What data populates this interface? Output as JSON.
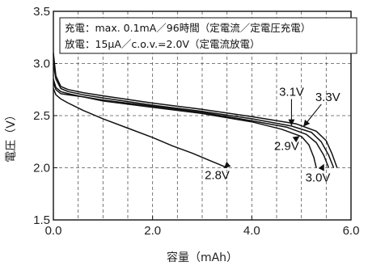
{
  "chart_data": {
    "type": "line",
    "xlabel": "容量（mAh）",
    "ylabel": "電圧（V）",
    "xlim": [
      0,
      6
    ],
    "ylim": [
      1.5,
      3.5
    ],
    "x_ticks": [
      "0.0",
      "2.0",
      "4.0",
      "6.0"
    ],
    "y_ticks": [
      "1.5",
      "2.0",
      "2.5",
      "3.0",
      "3.5"
    ],
    "grid": "dashed",
    "conditions": [
      "充電：max. 0.1mA／96時間（定電流／定電圧充電）",
      "放電：15μA／c.o.v.=2.0V（定電流放電）"
    ],
    "series": [
      {
        "name": "2.8V",
        "x": [
          0,
          0.05,
          0.15,
          0.3,
          0.6,
          1.0,
          1.5,
          2.0,
          2.4,
          2.8,
          3.1,
          3.35,
          3.5
        ],
        "y": [
          2.76,
          2.7,
          2.66,
          2.62,
          2.55,
          2.47,
          2.38,
          2.29,
          2.21,
          2.14,
          2.08,
          2.03,
          2.0
        ]
      },
      {
        "name": "2.9V",
        "x": [
          0,
          0.05,
          0.15,
          0.3,
          0.6,
          1.0,
          2.0,
          3.0,
          4.0,
          4.6,
          5.0,
          5.15,
          5.25,
          5.3
        ],
        "y": [
          2.82,
          2.75,
          2.71,
          2.7,
          2.68,
          2.64,
          2.58,
          2.52,
          2.44,
          2.37,
          2.3,
          2.22,
          2.1,
          2.0
        ]
      },
      {
        "name": "3.0V",
        "x": [
          0,
          0.05,
          0.15,
          0.3,
          0.6,
          1.0,
          2.0,
          3.0,
          4.0,
          4.7,
          5.1,
          5.3,
          5.45,
          5.55
        ],
        "y": [
          2.85,
          2.77,
          2.73,
          2.71,
          2.68,
          2.65,
          2.59,
          2.53,
          2.45,
          2.39,
          2.32,
          2.24,
          2.12,
          2.0
        ]
      },
      {
        "name": "3.1V",
        "x": [
          0,
          0.05,
          0.15,
          0.3,
          0.6,
          1.0,
          2.0,
          3.0,
          4.0,
          4.8,
          5.2,
          5.4,
          5.55,
          5.65
        ],
        "y": [
          3.0,
          2.85,
          2.76,
          2.73,
          2.7,
          2.67,
          2.6,
          2.54,
          2.47,
          2.4,
          2.34,
          2.25,
          2.12,
          2.0
        ]
      },
      {
        "name": "3.3V",
        "x": [
          0,
          0.05,
          0.15,
          0.3,
          0.6,
          1.0,
          2.0,
          3.0,
          4.0,
          4.9,
          5.3,
          5.5,
          5.62,
          5.72
        ],
        "y": [
          3.1,
          2.88,
          2.78,
          2.75,
          2.72,
          2.69,
          2.62,
          2.56,
          2.49,
          2.42,
          2.35,
          2.26,
          2.13,
          2.0
        ]
      }
    ],
    "annotations": [
      {
        "text": "3.1V",
        "target_series": "3.1V",
        "label_x": 4.55,
        "label_y": 2.69,
        "arrow_to_x": 4.8,
        "arrow_to_y": 2.41
      },
      {
        "text": "3.3V",
        "target_series": "3.3V",
        "label_x": 5.28,
        "label_y": 2.64,
        "arrow_to_x": 5.05,
        "arrow_to_y": 2.4
      },
      {
        "text": "2.9V",
        "target_series": "2.9V",
        "label_x": 4.45,
        "label_y": 2.17,
        "arrow_to_x": 4.95,
        "arrow_to_y": 2.3
      },
      {
        "text": "2.8V",
        "target_series": "2.8V",
        "label_x": 3.05,
        "label_y": 1.89,
        "arrow_to_x": 3.45,
        "arrow_to_y": 2.0
      },
      {
        "text": "3.0V",
        "target_series": "3.0V",
        "label_x": 5.08,
        "label_y": 1.87,
        "arrow_to_x": 5.45,
        "arrow_to_y": 2.03
      }
    ]
  }
}
